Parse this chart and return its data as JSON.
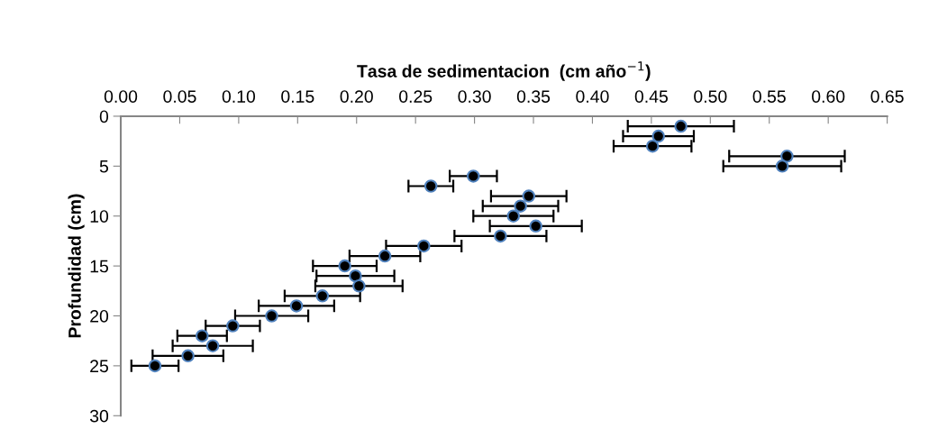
{
  "chart_data": {
    "type": "scatter",
    "xlabel": "Tasa de sedimentacion  (cm año$^{−1}$)",
    "ylabel": "Profundidad (cm)",
    "x": [
      0.475,
      0.456,
      0.451,
      0.565,
      0.561,
      0.299,
      0.263,
      0.346,
      0.339,
      0.333,
      0.352,
      0.322,
      0.257,
      0.224,
      0.19,
      0.199,
      0.202,
      0.171,
      0.149,
      0.128,
      0.095,
      0.069,
      0.078,
      0.057,
      0.029
    ],
    "series": [
      {
        "color": "#000000",
        "values": [
          1,
          2,
          3,
          4,
          5,
          6,
          7,
          8,
          9,
          10,
          11,
          12,
          13,
          14,
          15,
          16,
          17,
          18,
          19,
          20,
          21,
          22,
          23,
          24,
          25
        ],
        "xerrors": [
          0.045,
          0.03,
          0.033,
          0.049,
          0.05,
          0.02,
          0.019,
          0.032,
          0.032,
          0.034,
          0.039,
          0.039,
          0.032,
          0.03,
          0.027,
          0.033,
          0.037,
          0.032,
          0.032,
          0.031,
          0.023,
          0.021,
          0.034,
          0.03,
          0.02
        ]
      }
    ],
    "marker": "circle",
    "xlim": [
      0,
      0.65
    ],
    "xticks": [
      {
        "value": 0,
        "label": "0.00"
      },
      {
        "value": 0.05,
        "label": "0.05"
      },
      {
        "value": 0.1,
        "label": "0.10"
      },
      {
        "value": 0.15,
        "label": "0.15"
      },
      {
        "value": 0.2,
        "label": "0.20"
      },
      {
        "value": 0.25,
        "label": "0.25"
      },
      {
        "value": 0.3,
        "label": "0.30"
      },
      {
        "value": 0.35,
        "label": "0.35"
      },
      {
        "value": 0.4,
        "label": "0.40"
      },
      {
        "value": 0.45,
        "label": "0.45"
      },
      {
        "value": 0.5,
        "label": "0.50"
      },
      {
        "value": 0.55,
        "label": "0.55"
      },
      {
        "value": 0.6,
        "label": "0.60"
      },
      {
        "value": 0.65,
        "label": "0.65"
      }
    ],
    "ylim": [
      30,
      0
    ],
    "yticks": [
      0,
      5,
      10,
      15,
      20,
      25,
      30
    ],
    "grid": false,
    "legend": false
  }
}
